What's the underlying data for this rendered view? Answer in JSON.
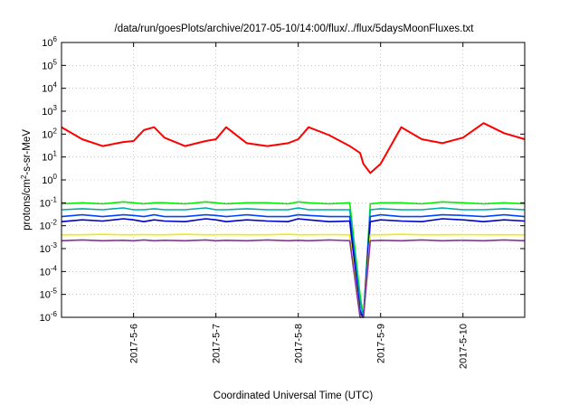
{
  "chart_data": {
    "type": "line",
    "title": "/data/run/goesPlots/archive/2017-05-10/14:00/flux/../flux/5daysMoonFluxes.txt",
    "xlabel": "Coordinated Universal Time (UTC)",
    "ylabel": {
      "pre": "protons/cm",
      "sup": "2",
      "post": "-s-sr-MeV"
    },
    "yscale": "log",
    "ylim": [
      1e-06,
      1000000.0
    ],
    "xlim": [
      "2017-05-05 03:00",
      "2017-05-10 18:00"
    ],
    "grid": true,
    "y_ticks": [
      {
        "base": "10",
        "exp": "-6",
        "value": 1e-06
      },
      {
        "base": "10",
        "exp": "-5",
        "value": 1e-05
      },
      {
        "base": "10",
        "exp": "-4",
        "value": 0.0001
      },
      {
        "base": "10",
        "exp": "-3",
        "value": 0.001
      },
      {
        "base": "10",
        "exp": "-2",
        "value": 0.01
      },
      {
        "base": "10",
        "exp": "-1",
        "value": 0.1
      },
      {
        "base": "10",
        "exp": "0",
        "value": 1.0
      },
      {
        "base": "10",
        "exp": "1",
        "value": 10.0
      },
      {
        "base": "10",
        "exp": "2",
        "value": 100.0
      },
      {
        "base": "10",
        "exp": "3",
        "value": 1000.0
      },
      {
        "base": "10",
        "exp": "4",
        "value": 10000.0
      },
      {
        "base": "10",
        "exp": "5",
        "value": 100000.0
      },
      {
        "base": "10",
        "exp": "6",
        "value": 1000000.0
      }
    ],
    "x_ticks": [
      {
        "label": "2017-5-6",
        "value": "2017-05-06 00:00"
      },
      {
        "label": "2017-5-7",
        "value": "2017-05-07 00:00"
      },
      {
        "label": "2017-5-8",
        "value": "2017-05-08 00:00"
      },
      {
        "label": "2017-5-9",
        "value": "2017-05-09 00:00"
      },
      {
        "label": "2017-5-10",
        "value": "2017-05-10 00:00"
      }
    ],
    "x": [
      "2017-05-05 03:00",
      "2017-05-05 09:00",
      "2017-05-05 15:00",
      "2017-05-05 21:00",
      "2017-05-06 00:00",
      "2017-05-06 03:00",
      "2017-05-06 06:00",
      "2017-05-06 09:00",
      "2017-05-06 15:00",
      "2017-05-06 21:00",
      "2017-05-07 00:00",
      "2017-05-07 03:00",
      "2017-05-07 09:00",
      "2017-05-07 15:00",
      "2017-05-07 21:00",
      "2017-05-08 00:00",
      "2017-05-08 03:00",
      "2017-05-08 09:00",
      "2017-05-08 15:00",
      "2017-05-08 18:00",
      "2017-05-08 19:00",
      "2017-05-08 21:00",
      "2017-05-09 00:00",
      "2017-05-09 06:00",
      "2017-05-09 12:00",
      "2017-05-09 18:00",
      "2017-05-10 00:00",
      "2017-05-10 06:00",
      "2017-05-10 12:00",
      "2017-05-10 18:00"
    ],
    "series": [
      {
        "color": "#ff0000",
        "values": [
          200,
          60,
          30,
          45,
          50,
          150,
          200,
          70,
          30,
          50,
          60,
          200,
          40,
          30,
          40,
          60,
          200,
          90,
          30,
          15,
          5,
          2,
          5,
          200,
          60,
          40,
          70,
          300,
          110,
          60
        ]
      },
      {
        "color": "#00ee00",
        "values": [
          0.09,
          0.1,
          0.09,
          0.11,
          0.1,
          0.09,
          0.1,
          0.1,
          0.09,
          0.11,
          0.1,
          0.09,
          0.1,
          0.1,
          0.09,
          0.11,
          0.1,
          0.09,
          0.1,
          1e-05,
          1e-06,
          0.09,
          0.1,
          0.1,
          0.09,
          0.11,
          0.1,
          0.09,
          0.1,
          0.09
        ]
      },
      {
        "color": "#00aaaa",
        "values": [
          0.05,
          0.055,
          0.05,
          0.06,
          0.05,
          0.05,
          0.055,
          0.05,
          0.05,
          0.06,
          0.05,
          0.05,
          0.055,
          0.05,
          0.05,
          0.06,
          0.05,
          0.05,
          0.05,
          5e-06,
          1e-06,
          0.05,
          0.055,
          0.05,
          0.05,
          0.06,
          0.05,
          0.05,
          0.055,
          0.05
        ]
      },
      {
        "color": "#0044ff",
        "values": [
          0.025,
          0.03,
          0.025,
          0.03,
          0.028,
          0.025,
          0.03,
          0.025,
          0.025,
          0.03,
          0.028,
          0.025,
          0.03,
          0.025,
          0.025,
          0.03,
          0.028,
          0.025,
          0.025,
          2e-06,
          1e-06,
          0.025,
          0.03,
          0.025,
          0.025,
          0.03,
          0.028,
          0.025,
          0.03,
          0.025
        ]
      },
      {
        "color": "#0000cc",
        "values": [
          0.015,
          0.018,
          0.016,
          0.02,
          0.018,
          0.015,
          0.018,
          0.016,
          0.015,
          0.02,
          0.018,
          0.015,
          0.018,
          0.016,
          0.015,
          0.02,
          0.018,
          0.015,
          0.016,
          1.5e-06,
          1e-06,
          0.015,
          0.018,
          0.016,
          0.015,
          0.02,
          0.018,
          0.015,
          0.018,
          0.016
        ]
      },
      {
        "color": "#eeee00",
        "values": [
          0.004,
          0.004,
          0.0042,
          0.004,
          0.004,
          0.0041,
          0.004,
          0.004,
          0.0042,
          0.004,
          0.004,
          0.0041,
          0.004,
          0.004,
          0.0042,
          0.004,
          0.004,
          0.0041,
          0.004,
          1e-06,
          1e-06,
          0.004,
          0.004,
          0.0042,
          0.004,
          0.004,
          0.0041,
          0.004,
          0.004,
          0.004
        ]
      },
      {
        "color": "#883399",
        "values": [
          0.0022,
          0.0024,
          0.0022,
          0.0023,
          0.0022,
          0.0024,
          0.0022,
          0.0023,
          0.0022,
          0.0024,
          0.0022,
          0.0023,
          0.0022,
          0.0024,
          0.0022,
          0.0023,
          0.0022,
          0.0024,
          0.0022,
          1e-06,
          1e-06,
          0.0022,
          0.0023,
          0.0022,
          0.0024,
          0.0022,
          0.0023,
          0.0022,
          0.0024,
          0.0022
        ]
      }
    ]
  }
}
